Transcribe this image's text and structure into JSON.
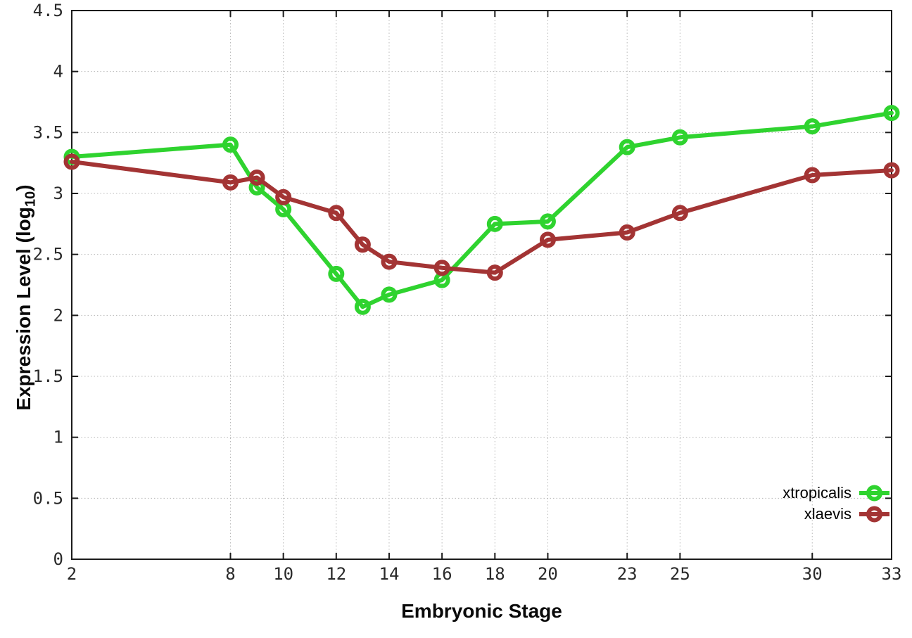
{
  "figure": {
    "xlabel": "Embryonic Stage",
    "ylabel_prefix": "Expression Level (log",
    "ylabel_subscript": "10",
    "ylabel_suffix": ")"
  },
  "chart_data": {
    "type": "line",
    "title": "",
    "xlabel": "Embryonic Stage",
    "ylabel": "Expression Level (log10)",
    "x": [
      2,
      8,
      9,
      10,
      12,
      13,
      14,
      16,
      18,
      20,
      23,
      25,
      30,
      33
    ],
    "series": [
      {
        "name": "xtropicalis",
        "color": "#2fd32f",
        "marker": "open-circle",
        "values": [
          3.3,
          3.4,
          3.05,
          2.87,
          2.34,
          2.07,
          2.17,
          2.29,
          2.75,
          2.77,
          3.38,
          3.46,
          3.55,
          3.66
        ]
      },
      {
        "name": "xlaevis",
        "color": "#a33434",
        "marker": "open-circle",
        "values": [
          3.26,
          3.09,
          3.13,
          2.97,
          2.84,
          2.58,
          2.44,
          2.39,
          2.35,
          2.62,
          2.68,
          2.84,
          3.15,
          3.19
        ]
      }
    ],
    "xlim": [
      2,
      33
    ],
    "ylim": [
      0,
      4.5
    ],
    "x_ticks": [
      2,
      8,
      10,
      12,
      14,
      16,
      18,
      20,
      23,
      25,
      30,
      33
    ],
    "y_ticks": [
      0,
      0.5,
      1,
      1.5,
      2,
      2.5,
      3,
      3.5,
      4,
      4.5
    ],
    "y_tick_labels": [
      "0",
      "0.5",
      "1",
      "1.5",
      "2",
      "2.5",
      "3",
      "3.5",
      "4",
      "4.5"
    ],
    "grid": true,
    "legend_position": "bottom-right",
    "axis_color": "#1c1c1c",
    "grid_color": "#b8b8b8",
    "text_color": "#2a2a2a"
  }
}
